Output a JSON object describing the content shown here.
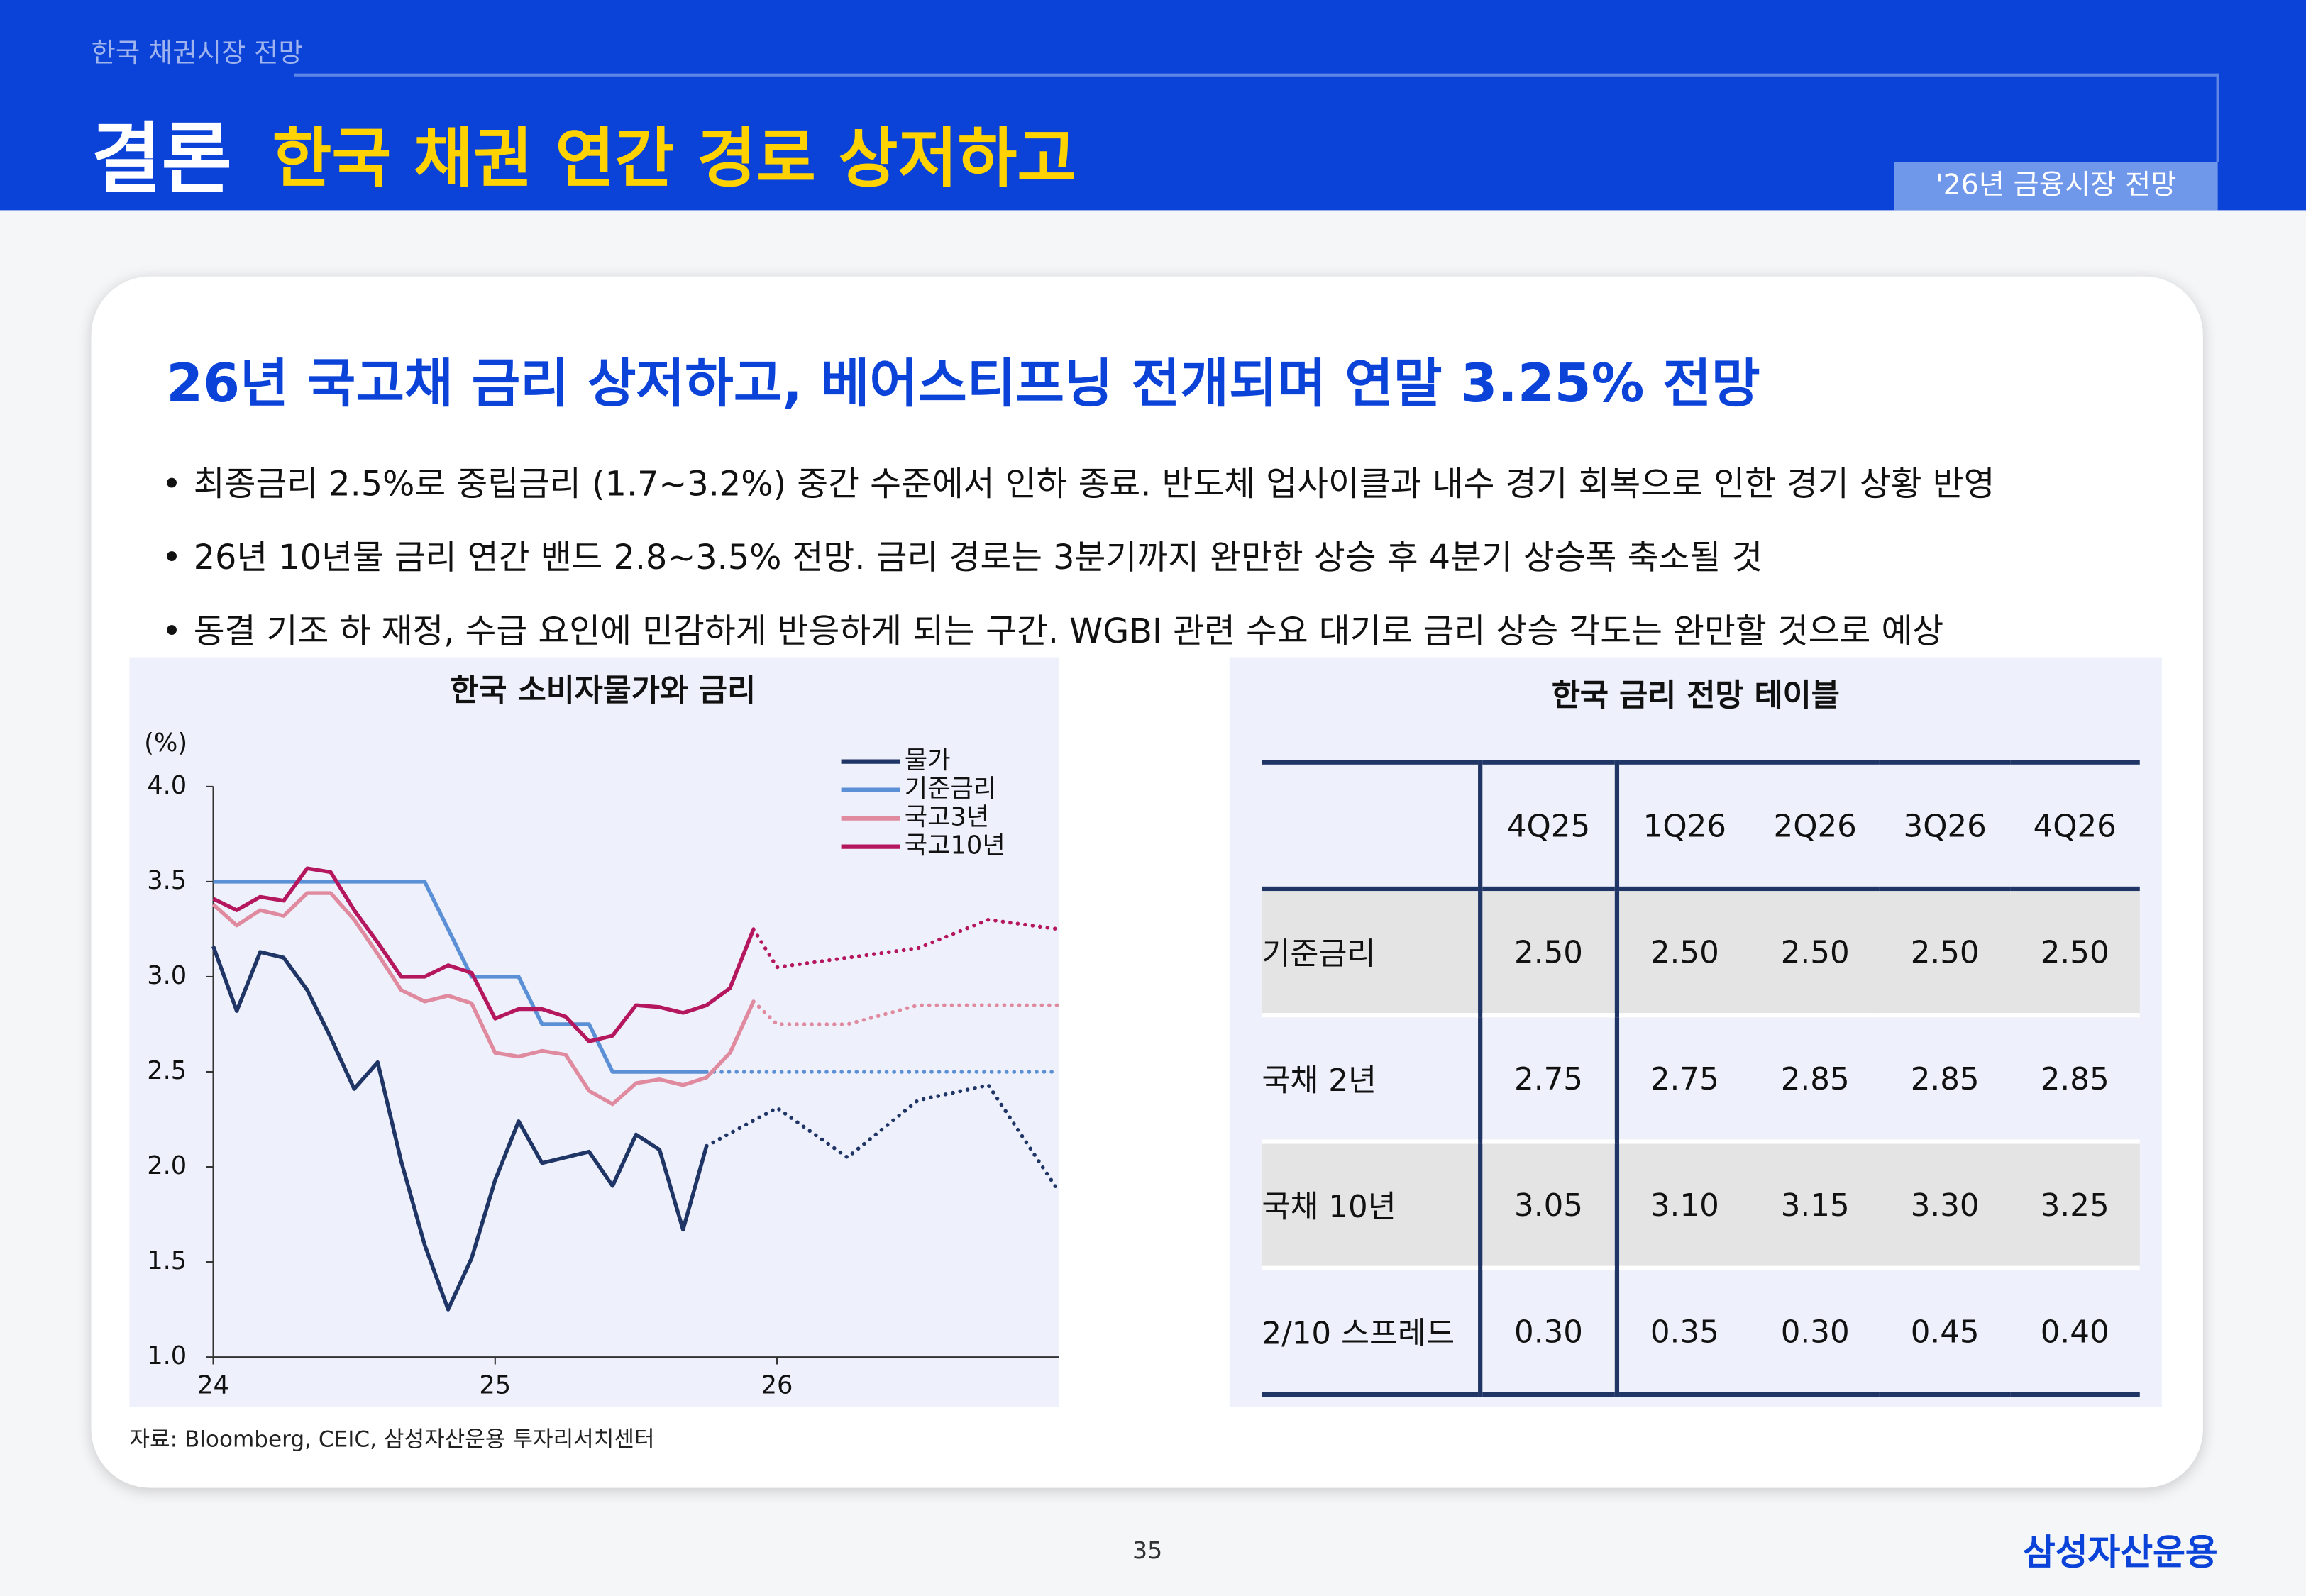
{
  "header": {
    "section": "한국 채권시장 전망",
    "title": "결론",
    "subtitle": "한국 채권 연간 경로 상저하고",
    "tag": "'26년 금융시장 전망"
  },
  "headline": "26년 국고채 금리 상저하고, 베어스티프닝 전개되며 연말 3.25% 전망",
  "bullets": [
    "최종금리 2.5%로 중립금리 (1.7~3.2%) 중간 수준에서 인하 종료. 반도체 업사이클과 내수 경기 회복으로 인한 경기 상황 반영",
    "26년 10년물 금리 연간 밴드 2.8~3.5% 전망. 금리 경로는 3분기까지 완만한 상승 후 4분기 상승폭 축소될 것",
    "동결 기조 하 재정, 수급 요인에 민감하게 반응하게 되는 구간. WGBI 관련 수요 대기로 금리 상승 각도는 완만할 것으로 예상"
  ],
  "chart_data": {
    "type": "line",
    "title": "한국 소비자물가와 금리",
    "y_label": "(%)",
    "xlim": [
      0,
      36
    ],
    "xticks": [
      {
        "value": 0,
        "label": "24"
      },
      {
        "value": 12,
        "label": "25"
      },
      {
        "value": 24,
        "label": "26"
      }
    ],
    "ylim": [
      1.0,
      4.0
    ],
    "yticks": [
      {
        "value": 1.0,
        "label": "1.0"
      },
      {
        "value": 1.5,
        "label": "1.5"
      },
      {
        "value": 2.0,
        "label": "2.0"
      },
      {
        "value": 2.5,
        "label": "2.5"
      },
      {
        "value": 3.0,
        "label": "3.0"
      },
      {
        "value": 3.5,
        "label": "3.5"
      },
      {
        "value": 4.0,
        "label": "4.0"
      }
    ],
    "series": [
      {
        "name": "물가",
        "color": "#1f3566",
        "x": [
          0,
          1,
          2,
          3,
          4,
          5,
          6,
          7,
          8,
          9,
          10,
          11,
          12,
          13,
          14,
          15,
          16,
          17,
          18,
          19,
          20,
          21
        ],
        "values": [
          3.16,
          2.82,
          3.13,
          3.1,
          2.93,
          2.68,
          2.41,
          2.55,
          2.03,
          1.59,
          1.25,
          1.52,
          1.93,
          2.24,
          2.02,
          2.05,
          2.08,
          1.9,
          2.17,
          2.09,
          1.67,
          2.11
        ],
        "forecast_x": [
          21,
          24,
          27,
          30,
          33,
          36
        ],
        "forecast_values": [
          2.11,
          2.31,
          2.05,
          2.35,
          2.43,
          1.87
        ]
      },
      {
        "name": "기준금리",
        "color": "#5b8fd6",
        "x": [
          0,
          9,
          10,
          11,
          13,
          14,
          16,
          17,
          21
        ],
        "values": [
          3.5,
          3.5,
          3.25,
          3.0,
          3.0,
          2.75,
          2.75,
          2.5,
          2.5
        ],
        "forecast_x": [
          21,
          24,
          27,
          30,
          33,
          36
        ],
        "forecast_values": [
          2.5,
          2.5,
          2.5,
          2.5,
          2.5,
          2.5
        ]
      },
      {
        "name": "국고3년",
        "color": "#e08aa0",
        "x": [
          0,
          1,
          2,
          3,
          4,
          5,
          6,
          7,
          8,
          9,
          10,
          11,
          12,
          13,
          14,
          15,
          16,
          17,
          18,
          19,
          20,
          21,
          22,
          23
        ],
        "values": [
          3.38,
          3.27,
          3.35,
          3.32,
          3.44,
          3.44,
          3.3,
          3.12,
          2.93,
          2.87,
          2.9,
          2.86,
          2.6,
          2.58,
          2.61,
          2.59,
          2.4,
          2.33,
          2.44,
          2.46,
          2.43,
          2.47,
          2.6,
          2.87
        ],
        "forecast_x": [
          23,
          24,
          27,
          30,
          33,
          36
        ],
        "forecast_values": [
          2.87,
          2.75,
          2.75,
          2.85,
          2.85,
          2.85
        ]
      },
      {
        "name": "국고10년",
        "color": "#b5175e",
        "x": [
          0,
          1,
          2,
          3,
          4,
          5,
          6,
          7,
          8,
          9,
          10,
          11,
          12,
          13,
          14,
          15,
          16,
          17,
          18,
          19,
          20,
          21,
          22,
          23
        ],
        "values": [
          3.41,
          3.35,
          3.42,
          3.4,
          3.57,
          3.55,
          3.35,
          3.18,
          3.0,
          3.0,
          3.06,
          3.02,
          2.78,
          2.83,
          2.83,
          2.79,
          2.66,
          2.69,
          2.85,
          2.84,
          2.81,
          2.85,
          2.94,
          3.25
        ],
        "forecast_x": [
          23,
          24,
          27,
          30,
          33,
          36
        ],
        "forecast_values": [
          3.25,
          3.05,
          3.1,
          3.15,
          3.3,
          3.25
        ]
      }
    ]
  },
  "table": {
    "title": "한국 금리 전망 테이블",
    "columns": [
      "4Q25",
      "1Q26",
      "2Q26",
      "3Q26",
      "4Q26"
    ],
    "rows": [
      {
        "label": "기준금리",
        "values": [
          "2.50",
          "2.50",
          "2.50",
          "2.50",
          "2.50"
        ]
      },
      {
        "label": "국채 2년",
        "values": [
          "2.75",
          "2.75",
          "2.85",
          "2.85",
          "2.85"
        ]
      },
      {
        "label": "국채 10년",
        "values": [
          "3.05",
          "3.10",
          "3.15",
          "3.30",
          "3.25"
        ]
      },
      {
        "label": "2/10 스프레드",
        "values": [
          "0.30",
          "0.35",
          "0.30",
          "0.45",
          "0.40"
        ]
      }
    ]
  },
  "source": "자료: Bloomberg, CEIC, 삼성자산운용 투자리서치센터",
  "page": "35",
  "logo": "삼성자산운용"
}
